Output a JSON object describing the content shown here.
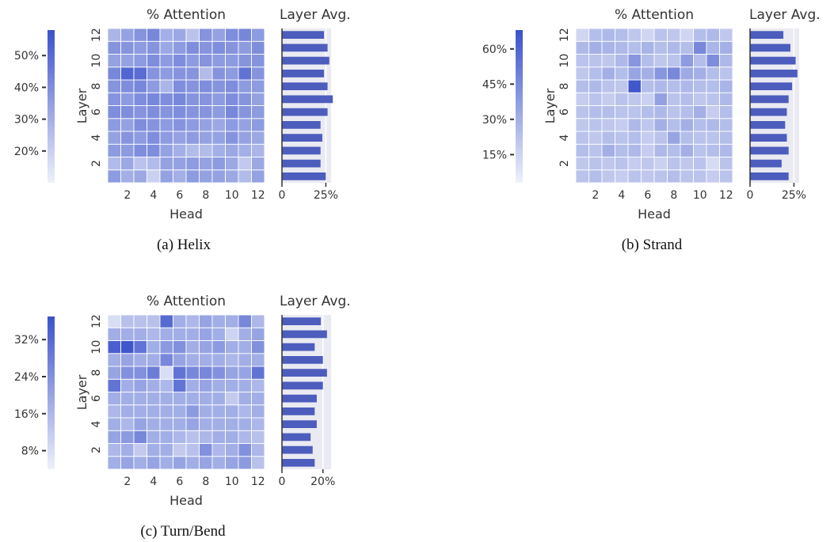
{
  "chart_data": [
    {
      "type": "heatmap",
      "caption": "(a) Helix",
      "title": "% Attention",
      "side_title": "Layer Avg.",
      "xlabel": "Head",
      "ylabel": "Layer",
      "x_ticks": [
        "2",
        "4",
        "6",
        "8",
        "10",
        "12"
      ],
      "y_ticks": [
        "2",
        "4",
        "6",
        "8",
        "10",
        "12"
      ],
      "colorbar": {
        "ticks": [
          "20%",
          "30%",
          "40%",
          "50%"
        ],
        "tick_values": [
          20,
          30,
          40,
          50
        ],
        "range": [
          10,
          58
        ]
      },
      "layer_avg_ticks": [
        "0",
        "25%"
      ],
      "layer_avg_tick_values": [
        0,
        25
      ],
      "layer_avg_range": [
        0,
        28
      ],
      "layers": [
        1,
        2,
        3,
        4,
        5,
        6,
        7,
        8,
        9,
        10,
        11,
        12
      ],
      "heads": [
        1,
        2,
        3,
        4,
        5,
        6,
        7,
        8,
        9,
        10,
        11,
        12
      ],
      "values": [
        [
          36,
          30,
          32,
          20,
          34,
          30,
          36,
          34,
          34,
          32,
          26,
          34
        ],
        [
          26,
          32,
          24,
          26,
          34,
          34,
          36,
          34,
          36,
          32,
          22,
          32
        ],
        [
          36,
          36,
          40,
          40,
          34,
          30,
          26,
          26,
          30,
          32,
          30,
          28
        ],
        [
          34,
          38,
          36,
          40,
          36,
          34,
          36,
          34,
          34,
          38,
          34,
          32
        ],
        [
          36,
          34,
          40,
          38,
          36,
          38,
          36,
          34,
          32,
          36,
          34,
          36
        ],
        [
          40,
          40,
          38,
          40,
          38,
          40,
          38,
          38,
          36,
          42,
          38,
          36
        ],
        [
          38,
          36,
          40,
          42,
          40,
          42,
          38,
          38,
          36,
          40,
          38,
          34
        ],
        [
          38,
          40,
          42,
          36,
          28,
          40,
          38,
          40,
          38,
          40,
          36,
          36
        ],
        [
          42,
          52,
          50,
          38,
          36,
          38,
          38,
          26,
          38,
          36,
          48,
          38
        ],
        [
          34,
          34,
          36,
          40,
          36,
          40,
          36,
          38,
          36,
          36,
          38,
          38
        ],
        [
          38,
          38,
          36,
          38,
          32,
          36,
          40,
          38,
          40,
          38,
          36,
          40
        ],
        [
          28,
          34,
          38,
          42,
          30,
          32,
          24,
          38,
          34,
          40,
          42,
          36
        ]
      ],
      "layer_avg": [
        25,
        22,
        22,
        23,
        22,
        26,
        29,
        26,
        24,
        27,
        26,
        24
      ]
    },
    {
      "type": "heatmap",
      "caption": "(b) Strand",
      "title": "% Attention",
      "side_title": "Layer Avg.",
      "xlabel": "Head",
      "ylabel": "Layer",
      "x_ticks": [
        "2",
        "4",
        "6",
        "8",
        "10",
        "12"
      ],
      "y_ticks": [
        "2",
        "4",
        "6",
        "8",
        "10",
        "12"
      ],
      "colorbar": {
        "ticks": [
          "15%",
          "30%",
          "45%",
          "60%"
        ],
        "tick_values": [
          15,
          30,
          45,
          60
        ],
        "range": [
          3,
          68
        ]
      },
      "layer_avg_ticks": [
        "0",
        "25%"
      ],
      "layer_avg_tick_values": [
        0,
        25
      ],
      "layer_avg_range": [
        0,
        28
      ],
      "layers": [
        1,
        2,
        3,
        4,
        5,
        6,
        7,
        8,
        9,
        10,
        11,
        12
      ],
      "heads": [
        1,
        2,
        3,
        4,
        5,
        6,
        7,
        8,
        9,
        10,
        11,
        12
      ],
      "values": [
        [
          22,
          24,
          20,
          18,
          22,
          20,
          22,
          24,
          22,
          22,
          18,
          22
        ],
        [
          20,
          22,
          20,
          22,
          18,
          20,
          16,
          22,
          20,
          22,
          12,
          22
        ],
        [
          24,
          22,
          30,
          24,
          26,
          18,
          26,
          24,
          30,
          22,
          24,
          26
        ],
        [
          22,
          20,
          24,
          22,
          24,
          18,
          22,
          34,
          24,
          22,
          22,
          24
        ],
        [
          20,
          22,
          20,
          18,
          26,
          20,
          30,
          24,
          30,
          24,
          26,
          24
        ],
        [
          22,
          24,
          24,
          22,
          22,
          24,
          26,
          22,
          24,
          30,
          18,
          24
        ],
        [
          18,
          22,
          18,
          22,
          20,
          16,
          36,
          22,
          24,
          20,
          22,
          26
        ],
        [
          24,
          26,
          22,
          20,
          66,
          24,
          26,
          24,
          26,
          24,
          24,
          28
        ],
        [
          20,
          24,
          30,
          24,
          34,
          30,
          40,
          46,
          32,
          30,
          24,
          22
        ],
        [
          22,
          22,
          20,
          26,
          40,
          24,
          20,
          22,
          38,
          24,
          44,
          26
        ],
        [
          26,
          30,
          28,
          26,
          24,
          28,
          24,
          26,
          24,
          46,
          28,
          30
        ],
        [
          14,
          24,
          26,
          24,
          20,
          14,
          22,
          20,
          14,
          24,
          26,
          20
        ]
      ],
      "layer_avg": [
        22,
        18,
        22,
        21,
        20,
        21,
        22,
        24,
        27,
        26,
        23,
        19
      ]
    },
    {
      "type": "heatmap",
      "caption": "(c) Turn/Bend",
      "title": "% Attention",
      "side_title": "Layer Avg.",
      "xlabel": "Head",
      "ylabel": "Layer",
      "x_ticks": [
        "2",
        "4",
        "6",
        "8",
        "10",
        "12"
      ],
      "y_ticks": [
        "2",
        "4",
        "6",
        "8",
        "10",
        "12"
      ],
      "colorbar": {
        "ticks": [
          "8%",
          "16%",
          "24%",
          "32%"
        ],
        "tick_values": [
          8,
          16,
          24,
          32
        ],
        "range": [
          4,
          37
        ]
      },
      "layer_avg_ticks": [
        "0",
        "20%"
      ],
      "layer_avg_tick_values": [
        0,
        20
      ],
      "layer_avg_range": [
        0,
        24
      ],
      "layers": [
        1,
        2,
        3,
        4,
        5,
        6,
        7,
        8,
        9,
        10,
        11,
        12
      ],
      "heads": [
        1,
        2,
        3,
        4,
        5,
        6,
        7,
        8,
        9,
        10,
        11,
        12
      ],
      "values": [
        [
          18,
          20,
          18,
          20,
          18,
          20,
          18,
          20,
          18,
          20,
          22,
          14
        ],
        [
          16,
          18,
          12,
          18,
          18,
          12,
          14,
          24,
          16,
          18,
          24,
          16
        ],
        [
          20,
          22,
          26,
          18,
          18,
          16,
          14,
          16,
          18,
          18,
          16,
          14
        ],
        [
          18,
          16,
          20,
          18,
          18,
          18,
          20,
          18,
          18,
          18,
          18,
          16
        ],
        [
          16,
          18,
          18,
          18,
          18,
          18,
          22,
          18,
          18,
          18,
          16,
          18
        ],
        [
          18,
          18,
          18,
          18,
          18,
          18,
          18,
          18,
          18,
          12,
          18,
          18
        ],
        [
          30,
          18,
          20,
          18,
          16,
          30,
          18,
          20,
          18,
          18,
          18,
          16
        ],
        [
          20,
          24,
          24,
          28,
          8,
          30,
          26,
          26,
          24,
          20,
          20,
          30
        ],
        [
          18,
          20,
          18,
          18,
          26,
          20,
          18,
          18,
          18,
          16,
          18,
          18
        ],
        [
          34,
          36,
          30,
          18,
          22,
          24,
          18,
          20,
          22,
          18,
          18,
          24
        ],
        [
          18,
          18,
          18,
          16,
          18,
          18,
          18,
          20,
          18,
          10,
          18,
          20
        ],
        [
          8,
          14,
          14,
          14,
          32,
          18,
          16,
          20,
          18,
          18,
          26,
          16
        ]
      ],
      "layer_avg": [
        16,
        15,
        14,
        17,
        16,
        17,
        20,
        22,
        20,
        16,
        22,
        19
      ]
    }
  ]
}
